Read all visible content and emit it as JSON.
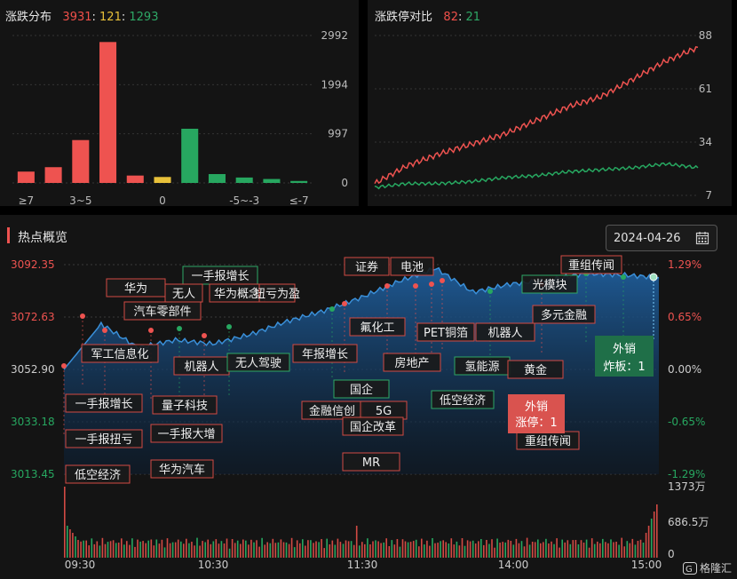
{
  "dist": {
    "title": "涨跌分布",
    "up": "3931",
    "flat": "121",
    "down": "1293",
    "ylim": [
      0,
      2992
    ],
    "yticks": [
      "2992",
      "1994",
      "997",
      "0"
    ],
    "xlabels": [
      "≥7",
      "3~5",
      "0",
      "-5~-3",
      "≤-7"
    ],
    "colors": {
      "up": "#ee5350",
      "flat": "#e8c13a",
      "down": "#27a760"
    }
  },
  "limit": {
    "title": "涨跌停对比",
    "up": "82",
    "down": "21",
    "yticks": [
      "88",
      "61",
      "34",
      "7"
    ]
  },
  "hot": {
    "title": "热点概览",
    "date": "2024-04-26",
    "left_ticks": [
      "3092.35",
      "3072.63",
      "3052.90",
      "3033.18",
      "3013.45"
    ],
    "right_ticks": [
      "1.29%",
      "0.65%",
      "0.00%",
      "-0.65%",
      "-1.29%"
    ],
    "vol_ticks": [
      "1373万",
      "686.5万",
      "0"
    ],
    "time_ticks": [
      "09:30",
      "10:30",
      "11:30",
      "14:00",
      "15:00"
    ],
    "tags": [
      "证券",
      "电池",
      "一手报增长",
      "华为",
      "无人",
      "华为概念",
      "扭亏为盈",
      "汽车零部件",
      "光模块",
      "重组传闻",
      "多元金融",
      "氟化工",
      "PET铜箔",
      "机器人",
      "军工信息化",
      "机器人",
      "无人驾驶",
      "年报增长",
      "房地产",
      "氢能源",
      "黄金",
      "国企",
      "低空经济",
      "一手报增长",
      "量子科技",
      "金融信创",
      "5G",
      "国企改革",
      "一手报扭亏",
      "一手报大增",
      "华为汽车",
      "低空经济",
      "MR",
      "重组传闻"
    ],
    "callouts": [
      {
        "title": "外销",
        "sub": "炸板：1"
      },
      {
        "title": "外销",
        "sub": "涨停：1"
      }
    ]
  },
  "chart_data": [
    {
      "type": "bar",
      "title": "涨跌分布",
      "categories": [
        "≥7",
        "",
        "3~5",
        "",
        "",
        "0",
        "",
        "",
        "-5~-3",
        "",
        "≤-7"
      ],
      "values": [
        230,
        320,
        870,
        2860,
        150,
        121,
        1100,
        180,
        110,
        80,
        40
      ],
      "ylim": [
        0,
        2992
      ]
    },
    {
      "type": "line",
      "title": "涨跌停对比",
      "ylim": [
        7,
        88
      ],
      "x": [
        0,
        10,
        20,
        30,
        40,
        50,
        60,
        70,
        80,
        90,
        100
      ],
      "series": [
        {
          "values": [
            13,
            22,
            28,
            33,
            38,
            45,
            52,
            57,
            66,
            75,
            82
          ],
          "color": "#ee5350"
        },
        {
          "values": [
            11,
            13,
            13,
            14,
            16,
            17,
            19,
            20,
            21,
            23,
            21
          ],
          "color": "#27a760"
        }
      ]
    },
    {
      "type": "area",
      "title": "热点概览",
      "ylim": [
        3013.45,
        3092.35
      ],
      "x": [
        "09:30",
        "09:45",
        "10:00",
        "10:15",
        "10:30",
        "10:45",
        "11:00",
        "11:15",
        "11:30",
        "13:15",
        "13:30",
        "13:45",
        "14:00",
        "14:15",
        "14:30",
        "14:45",
        "15:00"
      ],
      "values": [
        3052.9,
        3070.0,
        3061.0,
        3064.0,
        3062.5,
        3066.0,
        3071.0,
        3075.0,
        3080.0,
        3086.0,
        3091.0,
        3082.0,
        3085.0,
        3086.5,
        3089.0,
        3088.5,
        3087.5
      ],
      "volume_ylim": [
        0,
        1373
      ]
    }
  ]
}
